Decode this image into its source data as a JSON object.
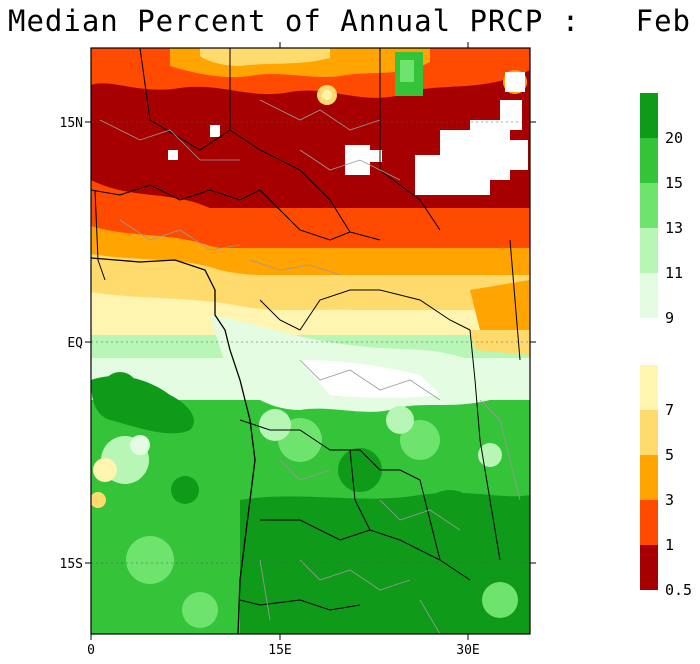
{
  "title": "Median Percent of Annual PRCP :   Feb",
  "map": {
    "lat_labels": [
      "15N",
      "EQ",
      "15S"
    ],
    "lon_labels": [
      "0",
      "15E",
      "30E"
    ]
  },
  "legend": {
    "upper": [
      {
        "label": "20",
        "color": "#0f9a1a"
      },
      {
        "label": "15",
        "color": "#35c33a"
      },
      {
        "label": "13",
        "color": "#6ee46e"
      },
      {
        "label": "11",
        "color": "#b7f6b4"
      },
      {
        "label": "9",
        "color": "#e4fde2"
      }
    ],
    "lower": [
      {
        "label": "7",
        "color": "#fff4b0"
      },
      {
        "label": "5",
        "color": "#ffdb6e"
      },
      {
        "label": "3",
        "color": "#ffa400"
      },
      {
        "label": "1",
        "color": "#ff4b00"
      },
      {
        "label": "0.5",
        "color": "#a70000"
      }
    ]
  },
  "colors": {
    "darkred": "#a70000",
    "red": "#ff4b00",
    "orange": "#ffa400",
    "gold": "#ffdb6e",
    "cream": "#fff4b0",
    "nearwhite": "#e4fde2",
    "palegreen": "#b7f6b4",
    "lightgreen": "#6ee46e",
    "green": "#35c33a",
    "darkgreen": "#0f9a1a"
  }
}
